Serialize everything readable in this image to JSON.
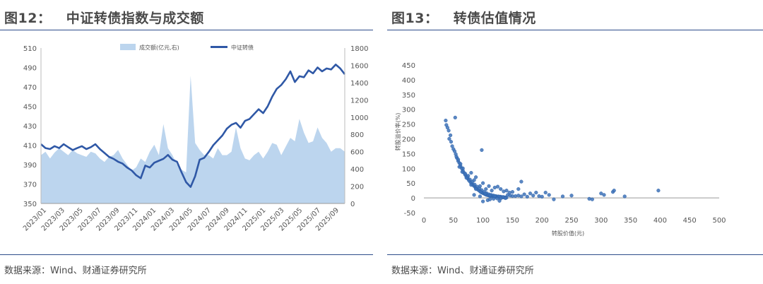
{
  "left": {
    "figure_title": "图12：   中证转债指数与成交额",
    "source": "数据来源：Wind、财通证券研究所"
  },
  "right": {
    "figure_title": "图13：   转债估值情况",
    "source": "数据来源：Wind、财通证券研究所"
  },
  "colors": {
    "rule": "#2d4c8a",
    "line": "#2f58a6",
    "area": "#bcd5ee",
    "dots": "#3d72b8"
  },
  "chart_data": [
    {
      "type": "line",
      "legend": [
        "成交额(亿元,右)",
        "中证转债"
      ],
      "legend_placement": "top",
      "x_tick_labels": [
        "2023/01",
        "2023/03",
        "2023/05",
        "2023/07",
        "2023/09",
        "2023/11",
        "2024/01",
        "2024/03",
        "2024/05",
        "2024/07",
        "2024/09",
        "2024/11",
        "2025/01",
        "2025/03",
        "2025/05",
        "2025/07",
        "2025/09"
      ],
      "ylim_left": [
        350,
        510
      ],
      "yticks_left": [
        350,
        370,
        390,
        410,
        430,
        450,
        470,
        490,
        510
      ],
      "ylim_right": [
        0,
        1800
      ],
      "yticks_right": [
        0,
        200,
        400,
        600,
        800,
        1000,
        1200,
        1400,
        1600,
        1800
      ],
      "grid": false,
      "series": [
        {
          "name": "中证转债",
          "axis": "left",
          "x": [
            0,
            0.5,
            1,
            1.5,
            2,
            2.5,
            3,
            3.5,
            4,
            4.5,
            5,
            5.5,
            6,
            6.5,
            7,
            7.5,
            8,
            8.5,
            9,
            9.5,
            10,
            10.5,
            11,
            11.5,
            12,
            12.5,
            13,
            13.5,
            14,
            14.5,
            15,
            15.5,
            16,
            16.5,
            17,
            17.5,
            18,
            18.5,
            19,
            19.5,
            20,
            20.5,
            21,
            21.5,
            22,
            22.5,
            23,
            23.5,
            24,
            24.5,
            25,
            25.5,
            26,
            26.5,
            27,
            27.5,
            28,
            28.5,
            29,
            29.5,
            30,
            30.5,
            31,
            31.5,
            32,
            32.5,
            33,
            33.5
          ],
          "values": [
            411,
            407,
            406,
            409,
            407,
            411,
            408,
            405,
            407,
            409,
            406,
            408,
            411,
            406,
            402,
            398,
            396,
            393,
            391,
            387,
            384,
            379,
            376,
            389,
            387,
            392,
            394,
            396,
            400,
            395,
            393,
            382,
            372,
            367,
            378,
            395,
            397,
            403,
            410,
            415,
            420,
            427,
            431,
            433,
            428,
            435,
            437,
            442,
            447,
            443,
            450,
            460,
            468,
            472,
            478,
            486,
            475,
            481,
            480,
            487,
            484,
            490,
            486,
            489,
            488,
            493,
            489,
            483
          ]
        },
        {
          "name": "成交额(亿元,右)",
          "axis": "right",
          "x": [
            0,
            0.5,
            1,
            1.5,
            2,
            2.5,
            3,
            3.5,
            4,
            4.5,
            5,
            5.5,
            6,
            6.5,
            7,
            7.5,
            8,
            8.5,
            9,
            9.5,
            10,
            10.5,
            11,
            11.5,
            12,
            12.5,
            13,
            13.5,
            14,
            14.5,
            15,
            15.5,
            16,
            16.5,
            17,
            17.5,
            18,
            18.5,
            19,
            19.5,
            20,
            20.5,
            21,
            21.5,
            22,
            22.5,
            23,
            23.5,
            24,
            24.5,
            25,
            25.5,
            26,
            26.5,
            27,
            27.5,
            28,
            28.5,
            29,
            29.5,
            30,
            30.5,
            31,
            31.5,
            32,
            32.5,
            33,
            33.5
          ],
          "values": [
            560,
            600,
            520,
            590,
            640,
            600,
            560,
            620,
            580,
            560,
            540,
            600,
            580,
            520,
            480,
            540,
            560,
            620,
            520,
            450,
            380,
            420,
            520,
            480,
            600,
            680,
            560,
            920,
            640,
            560,
            450,
            390,
            360,
            1480,
            700,
            620,
            560,
            560,
            520,
            640,
            560,
            560,
            600,
            880,
            640,
            520,
            500,
            560,
            600,
            520,
            600,
            700,
            680,
            560,
            660,
            760,
            720,
            980,
            820,
            700,
            720,
            880,
            760,
            700,
            600,
            640,
            640,
            600
          ]
        }
      ]
    },
    {
      "type": "scatter",
      "xlabel": "转股价值(元)",
      "ylabel": "转股溢价率(%)",
      "xlim": [
        0,
        500
      ],
      "ylim": [
        -50,
        450
      ],
      "xticks": [
        0,
        50,
        100,
        150,
        200,
        250,
        300,
        350,
        400,
        450,
        500
      ],
      "yticks": [
        -50,
        0,
        50,
        100,
        150,
        200,
        250,
        300,
        350,
        400,
        450
      ],
      "grid": false,
      "points": [
        [
          37,
          262
        ],
        [
          38,
          247
        ],
        [
          40,
          238
        ],
        [
          42,
          228
        ],
        [
          43,
          200
        ],
        [
          45,
          212
        ],
        [
          46,
          190
        ],
        [
          48,
          175
        ],
        [
          50,
          165
        ],
        [
          52,
          158
        ],
        [
          54,
          148
        ],
        [
          56,
          135
        ],
        [
          58,
          125
        ],
        [
          60,
          118
        ],
        [
          62,
          108
        ],
        [
          64,
          100
        ],
        [
          66,
          92
        ],
        [
          68,
          85
        ],
        [
          70,
          78
        ],
        [
          72,
          72
        ],
        [
          74,
          66
        ],
        [
          76,
          60
        ],
        [
          78,
          55
        ],
        [
          80,
          50
        ],
        [
          82,
          46
        ],
        [
          84,
          42
        ],
        [
          86,
          38
        ],
        [
          88,
          34
        ],
        [
          90,
          30
        ],
        [
          92,
          27
        ],
        [
          94,
          24
        ],
        [
          96,
          21
        ],
        [
          98,
          18
        ],
        [
          100,
          16
        ],
        [
          102,
          14
        ],
        [
          104,
          12
        ],
        [
          106,
          10
        ],
        [
          108,
          9
        ],
        [
          110,
          8
        ],
        [
          112,
          7
        ],
        [
          114,
          6
        ],
        [
          116,
          6
        ],
        [
          118,
          5
        ],
        [
          120,
          5
        ],
        [
          122,
          4
        ],
        [
          124,
          4
        ],
        [
          126,
          3
        ],
        [
          128,
          3
        ],
        [
          130,
          3
        ],
        [
          132,
          2
        ],
        [
          134,
          2
        ],
        [
          136,
          2
        ],
        [
          138,
          2
        ],
        [
          140,
          1
        ],
        [
          58,
          130
        ],
        [
          62,
          115
        ],
        [
          66,
          100
        ],
        [
          70,
          82
        ],
        [
          74,
          70
        ],
        [
          78,
          62
        ],
        [
          82,
          55
        ],
        [
          86,
          45
        ],
        [
          90,
          38
        ],
        [
          94,
          32
        ],
        [
          98,
          26
        ],
        [
          102,
          20
        ],
        [
          106,
          16
        ],
        [
          110,
          12
        ],
        [
          114,
          10
        ],
        [
          118,
          8
        ],
        [
          122,
          6
        ],
        [
          126,
          5
        ],
        [
          130,
          4
        ],
        [
          134,
          3
        ],
        [
          55,
          140
        ],
        [
          60,
          105
        ],
        [
          65,
          88
        ],
        [
          72,
          68
        ],
        [
          80,
          44
        ],
        [
          88,
          30
        ],
        [
          96,
          20
        ],
        [
          104,
          14
        ],
        [
          112,
          9
        ],
        [
          120,
          6
        ],
        [
          128,
          4
        ],
        [
          53,
          272
        ],
        [
          98,
          162
        ],
        [
          80,
          85
        ],
        [
          88,
          70
        ],
        [
          100,
          50
        ],
        [
          110,
          40
        ],
        [
          120,
          35
        ],
        [
          130,
          30
        ],
        [
          140,
          25
        ],
        [
          150,
          20
        ],
        [
          160,
          30
        ],
        [
          165,
          55
        ],
        [
          125,
          38
        ],
        [
          145,
          18
        ],
        [
          115,
          25
        ],
        [
          105,
          30
        ],
        [
          135,
          22
        ],
        [
          95,
          40
        ],
        [
          85,
          60
        ],
        [
          75,
          75
        ],
        [
          142,
          10
        ],
        [
          146,
          8
        ],
        [
          150,
          6
        ],
        [
          155,
          6
        ],
        [
          160,
          8
        ],
        [
          165,
          5
        ],
        [
          170,
          12
        ],
        [
          175,
          4
        ],
        [
          180,
          15
        ],
        [
          185,
          8
        ],
        [
          190,
          18
        ],
        [
          195,
          6
        ],
        [
          200,
          4
        ],
        [
          206,
          18
        ],
        [
          212,
          10
        ],
        [
          220,
          -5
        ],
        [
          235,
          5
        ],
        [
          250,
          8
        ],
        [
          280,
          -3
        ],
        [
          285,
          -5
        ],
        [
          300,
          15
        ],
        [
          305,
          10
        ],
        [
          320,
          20
        ],
        [
          322,
          25
        ],
        [
          340,
          5
        ],
        [
          397,
          25
        ],
        [
          100,
          -12
        ],
        [
          108,
          -8
        ],
        [
          112,
          -5
        ],
        [
          118,
          -3
        ],
        [
          124,
          -2
        ],
        [
          130,
          -2
        ],
        [
          138,
          -1
        ],
        [
          128,
          -10
        ],
        [
          95,
          5
        ],
        [
          85,
          10
        ]
      ]
    }
  ]
}
